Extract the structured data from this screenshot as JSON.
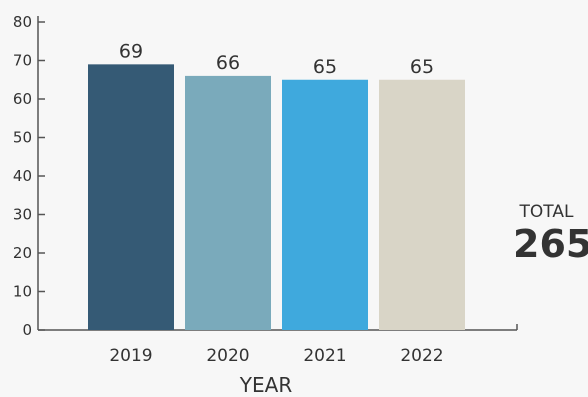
{
  "chart_data": {
    "type": "bar",
    "categories": [
      "2019",
      "2020",
      "2021",
      "2022"
    ],
    "values": [
      69,
      66,
      65,
      65
    ],
    "data_labels": [
      "69",
      "66",
      "65",
      "65"
    ],
    "colors": [
      "#355a75",
      "#7aaabb",
      "#3fa9dd",
      "#d9d5c7"
    ],
    "xlabel": "YEAR",
    "ylabel": "",
    "title": "",
    "ylim": [
      0,
      80
    ],
    "yticks": [
      0,
      10,
      20,
      30,
      40,
      50,
      60,
      70,
      80
    ],
    "grid": false,
    "legend": "none"
  },
  "total": {
    "label": "TOTAL",
    "value": "265"
  }
}
